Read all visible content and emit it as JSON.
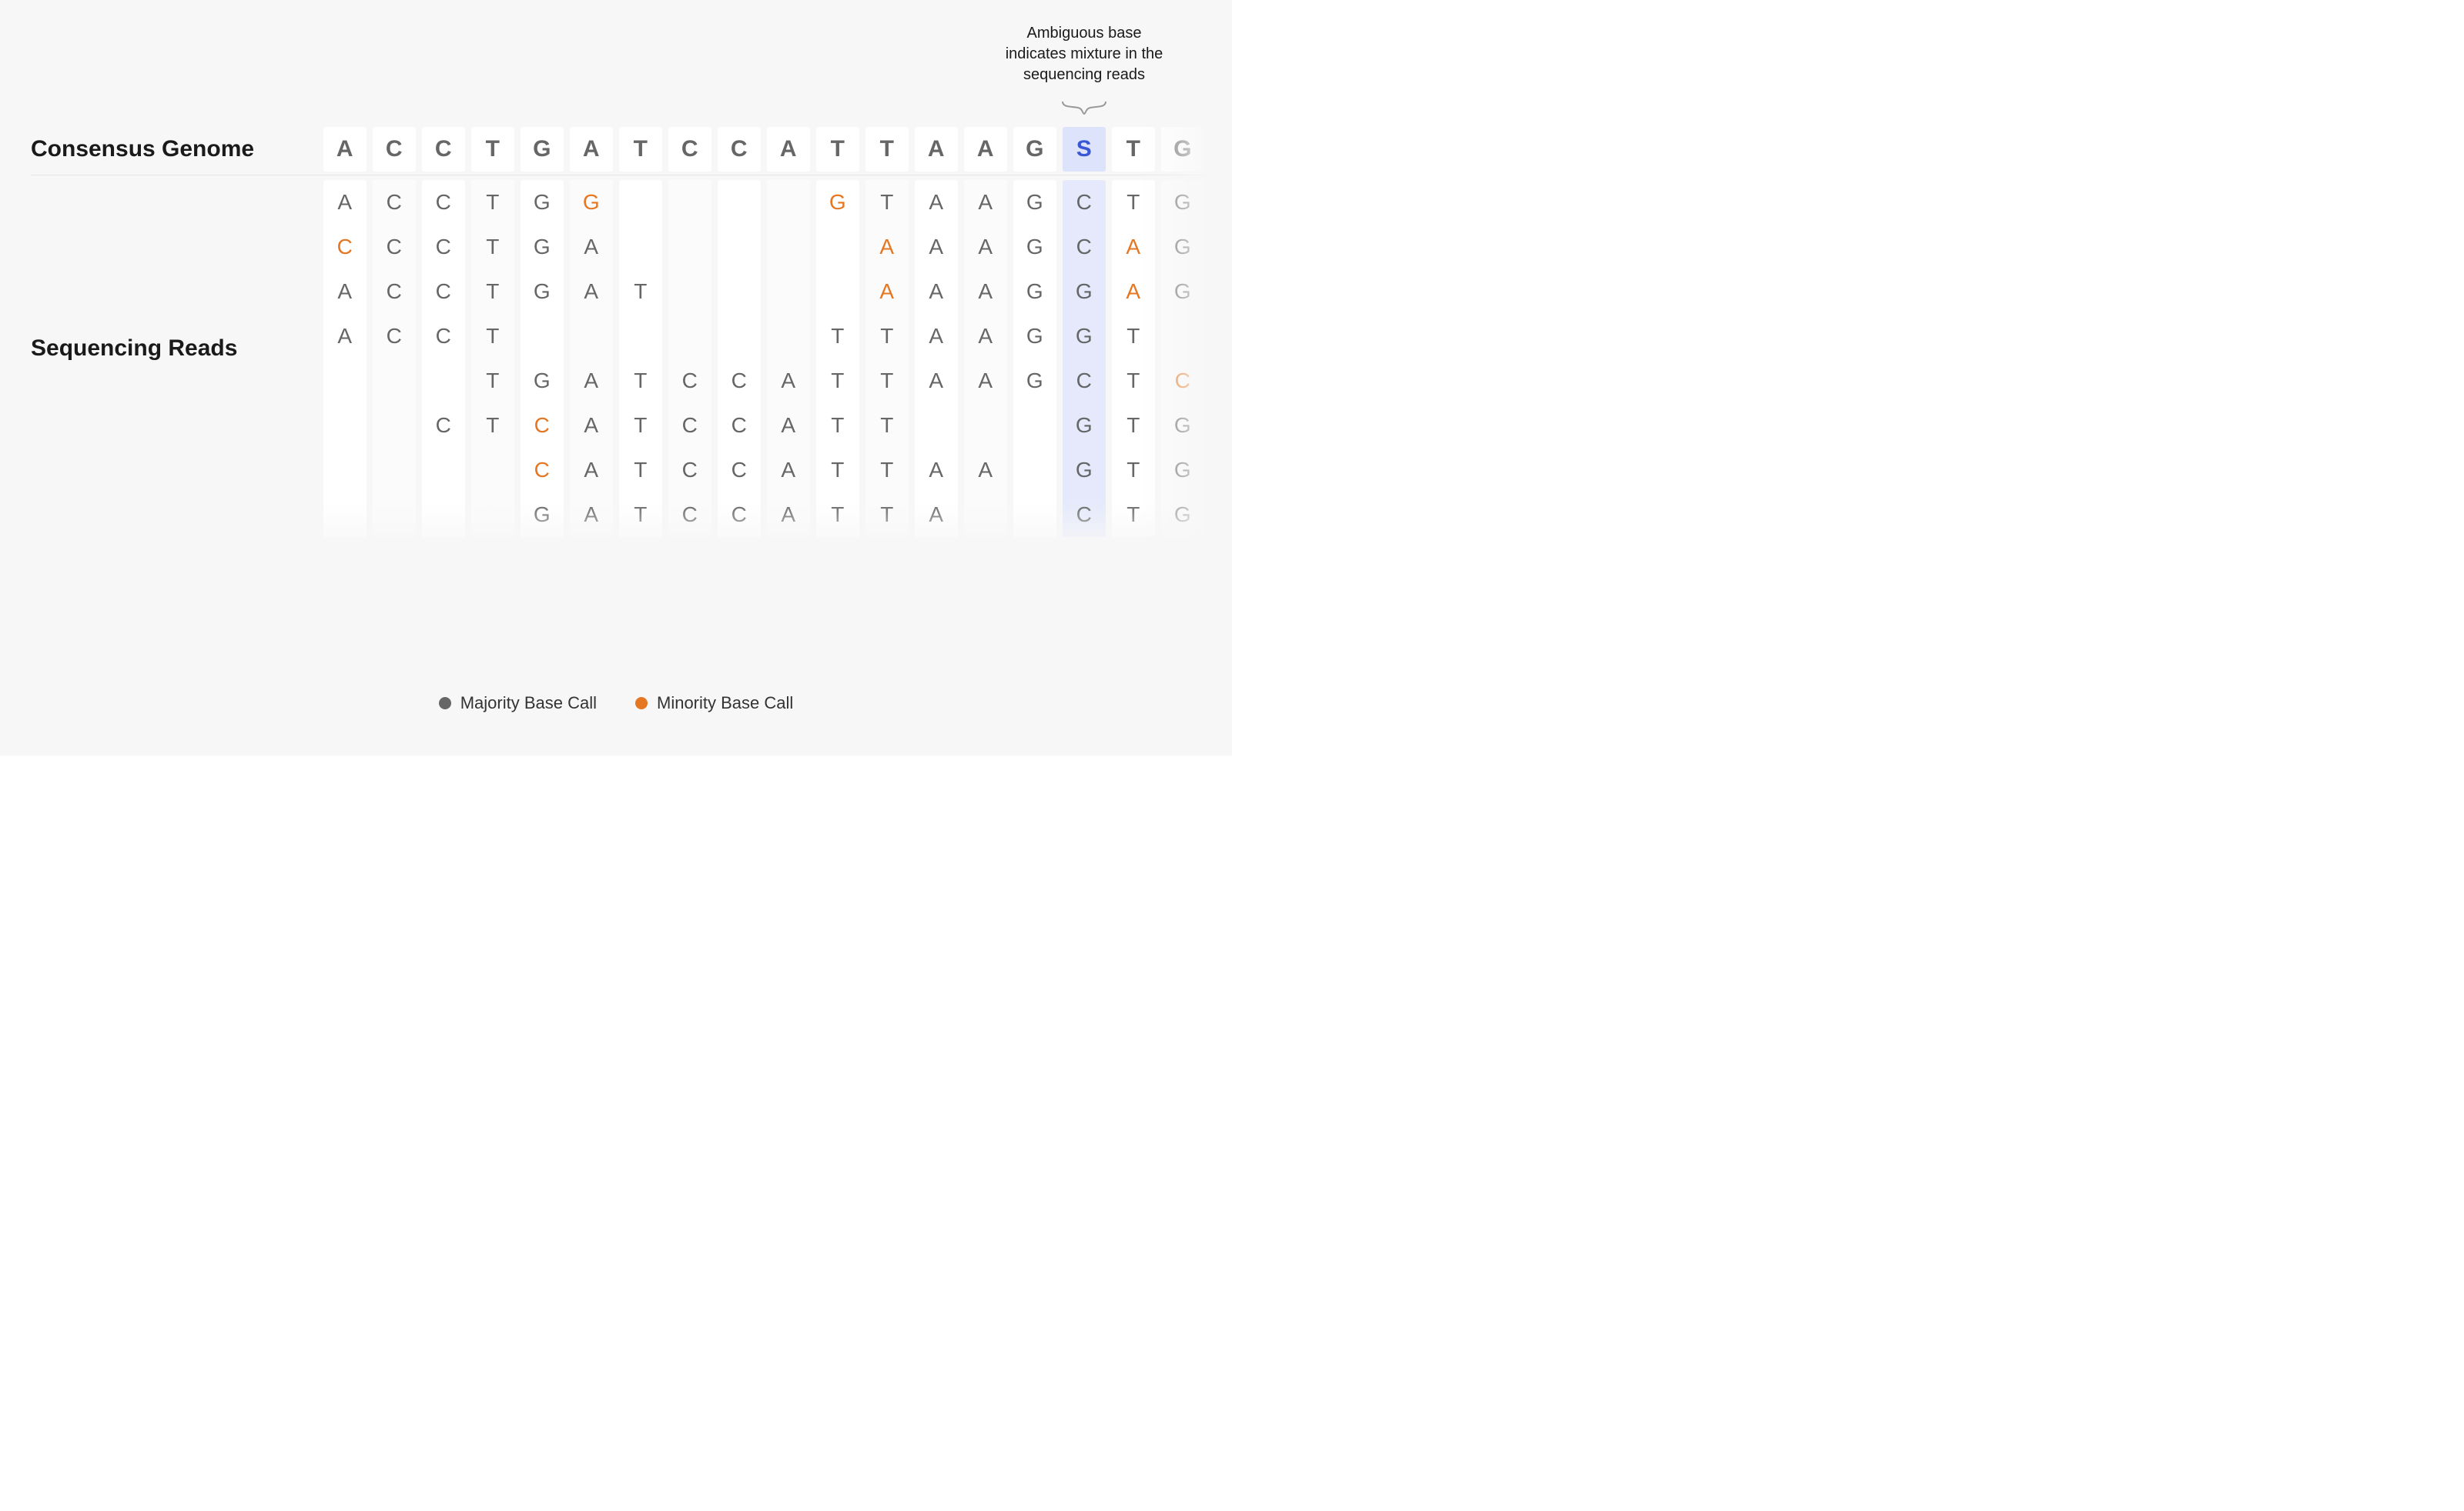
{
  "diagram": {
    "background_color": "#f7f7f7",
    "cell_bg_a": "#ffffff",
    "cell_bg_b": "#fbfbfb",
    "highlight_bg": "#e5e9fb",
    "highlight_bg_consensus": "#dde3fa",
    "highlight_text": "#3a57d6",
    "text_color": "#666666",
    "minority_color": "#e67722",
    "label_color": "#1a1a1a",
    "annotation_text": "Ambiguous base indicates mixture in the sequencing reads",
    "consensus_label": "Consensus Genome",
    "reads_label": "Sequencing Reads",
    "highlight_column": 15,
    "columns": 18,
    "consensus": [
      "A",
      "C",
      "C",
      "T",
      "G",
      "A",
      "T",
      "C",
      "C",
      "A",
      "T",
      "T",
      "A",
      "A",
      "G",
      "S",
      "T",
      "G"
    ],
    "reads": [
      [
        {
          "b": "A"
        },
        {
          "b": "C"
        },
        {
          "b": "C"
        },
        {
          "b": "T"
        },
        {
          "b": "G"
        },
        {
          "b": "G",
          "m": true
        },
        {
          "b": ""
        },
        {
          "b": ""
        },
        {
          "b": ""
        },
        {
          "b": ""
        },
        {
          "b": "G",
          "m": true
        },
        {
          "b": "T"
        },
        {
          "b": "A"
        },
        {
          "b": "A"
        },
        {
          "b": "G"
        },
        {
          "b": "C"
        },
        {
          "b": "T"
        },
        {
          "b": "G"
        }
      ],
      [
        {
          "b": "C",
          "m": true
        },
        {
          "b": "C"
        },
        {
          "b": "C"
        },
        {
          "b": "T"
        },
        {
          "b": "G"
        },
        {
          "b": "A"
        },
        {
          "b": ""
        },
        {
          "b": ""
        },
        {
          "b": ""
        },
        {
          "b": ""
        },
        {
          "b": ""
        },
        {
          "b": "A",
          "m": true
        },
        {
          "b": "A"
        },
        {
          "b": "A"
        },
        {
          "b": "G"
        },
        {
          "b": "C"
        },
        {
          "b": "A",
          "m": true
        },
        {
          "b": "G"
        }
      ],
      [
        {
          "b": "A"
        },
        {
          "b": "C"
        },
        {
          "b": "C"
        },
        {
          "b": "T"
        },
        {
          "b": "G"
        },
        {
          "b": "A"
        },
        {
          "b": "T"
        },
        {
          "b": ""
        },
        {
          "b": ""
        },
        {
          "b": ""
        },
        {
          "b": ""
        },
        {
          "b": "A",
          "m": true
        },
        {
          "b": "A"
        },
        {
          "b": "A"
        },
        {
          "b": "G"
        },
        {
          "b": "G"
        },
        {
          "b": "A",
          "m": true
        },
        {
          "b": "G"
        }
      ],
      [
        {
          "b": "A"
        },
        {
          "b": "C"
        },
        {
          "b": "C"
        },
        {
          "b": "T"
        },
        {
          "b": ""
        },
        {
          "b": ""
        },
        {
          "b": ""
        },
        {
          "b": ""
        },
        {
          "b": ""
        },
        {
          "b": ""
        },
        {
          "b": "T"
        },
        {
          "b": "T"
        },
        {
          "b": "A"
        },
        {
          "b": "A"
        },
        {
          "b": "G"
        },
        {
          "b": "G"
        },
        {
          "b": "T"
        },
        {
          "b": ""
        }
      ],
      [
        {
          "b": ""
        },
        {
          "b": ""
        },
        {
          "b": ""
        },
        {
          "b": "T"
        },
        {
          "b": "G"
        },
        {
          "b": "A"
        },
        {
          "b": "T"
        },
        {
          "b": "C"
        },
        {
          "b": "C"
        },
        {
          "b": "A"
        },
        {
          "b": "T"
        },
        {
          "b": "T"
        },
        {
          "b": "A"
        },
        {
          "b": "A"
        },
        {
          "b": "G"
        },
        {
          "b": "C"
        },
        {
          "b": "T"
        },
        {
          "b": "C",
          "m": true
        }
      ],
      [
        {
          "b": ""
        },
        {
          "b": ""
        },
        {
          "b": "C"
        },
        {
          "b": "T"
        },
        {
          "b": "C",
          "m": true
        },
        {
          "b": "A"
        },
        {
          "b": "T"
        },
        {
          "b": "C"
        },
        {
          "b": "C"
        },
        {
          "b": "A"
        },
        {
          "b": "T"
        },
        {
          "b": "T"
        },
        {
          "b": ""
        },
        {
          "b": ""
        },
        {
          "b": ""
        },
        {
          "b": "G"
        },
        {
          "b": "T"
        },
        {
          "b": "G"
        }
      ],
      [
        {
          "b": ""
        },
        {
          "b": ""
        },
        {
          "b": ""
        },
        {
          "b": ""
        },
        {
          "b": "C",
          "m": true
        },
        {
          "b": "A"
        },
        {
          "b": "T"
        },
        {
          "b": "C"
        },
        {
          "b": "C"
        },
        {
          "b": "A"
        },
        {
          "b": "T"
        },
        {
          "b": "T"
        },
        {
          "b": "A"
        },
        {
          "b": "A"
        },
        {
          "b": ""
        },
        {
          "b": "G"
        },
        {
          "b": "T"
        },
        {
          "b": "G"
        }
      ],
      [
        {
          "b": ""
        },
        {
          "b": ""
        },
        {
          "b": ""
        },
        {
          "b": ""
        },
        {
          "b": "G"
        },
        {
          "b": "A"
        },
        {
          "b": "T"
        },
        {
          "b": "C"
        },
        {
          "b": "C"
        },
        {
          "b": "A"
        },
        {
          "b": "T"
        },
        {
          "b": "T"
        },
        {
          "b": "A"
        },
        {
          "b": ""
        },
        {
          "b": ""
        },
        {
          "b": "C"
        },
        {
          "b": "T"
        },
        {
          "b": "G"
        }
      ]
    ],
    "legend": {
      "majority_label": "Majority Base Call",
      "minority_label": "Minority Base Call",
      "majority_color": "#666666",
      "minority_color": "#e67722"
    }
  }
}
